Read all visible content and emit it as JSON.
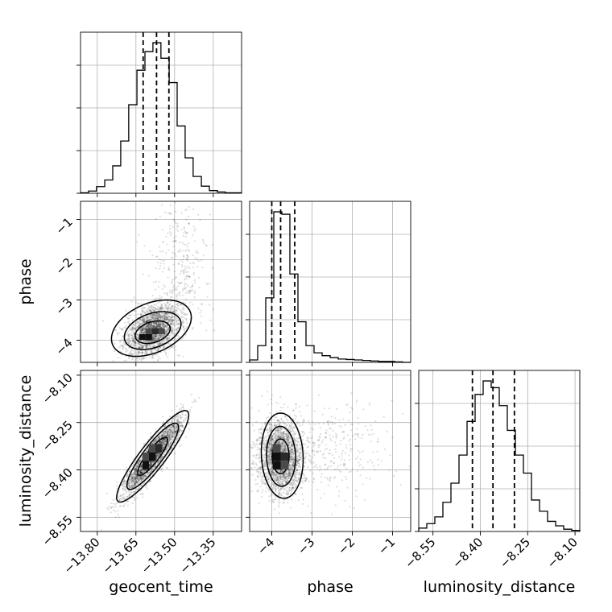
{
  "chart_data": {
    "type": "corner",
    "parameters": [
      "geocent_time",
      "phase",
      "luminosity_distance"
    ],
    "ranges": {
      "geocent_time": [
        -13.865,
        -13.24
      ],
      "phase": [
        -4.55,
        -0.55
      ],
      "luminosity_distance": [
        -8.595,
        -8.085
      ]
    },
    "ticks": {
      "geocent_time": [
        -13.8,
        -13.65,
        -13.5,
        -13.35
      ],
      "phase": [
        -4,
        -3,
        -2,
        -1
      ],
      "luminosity_distance": [
        -8.55,
        -8.4,
        -8.25,
        -8.1
      ]
    },
    "tick_labels": {
      "geocent_time": [
        "−13.80",
        "−13.65",
        "−13.50",
        "−13.35"
      ],
      "phase": [
        "−4",
        "−3",
        "−2",
        "−1"
      ],
      "luminosity_distance": [
        "−8.55",
        "−8.40",
        "−8.25",
        "−8.10"
      ]
    },
    "axis_labels": {
      "geocent_time": "geocent_time",
      "phase": "phase",
      "luminosity_distance": "luminosity_distance"
    },
    "histograms": {
      "geocent_time": {
        "edges": [
          -13.865,
          -13.834,
          -13.803,
          -13.771,
          -13.74,
          -13.709,
          -13.678,
          -13.646,
          -13.615,
          -13.584,
          -13.553,
          -13.521,
          -13.49,
          -13.459,
          -13.428,
          -13.396,
          -13.365,
          -13.334,
          -13.303,
          -13.271,
          -13.24
        ],
        "counts": [
          1,
          5,
          15,
          30,
          62,
          118,
          200,
          278,
          320,
          340,
          305,
          250,
          152,
          80,
          38,
          16,
          6,
          3,
          1,
          1
        ],
        "quantiles": [
          -13.622,
          -13.57,
          -13.522
        ]
      },
      "phase": {
        "edges": [
          -4.55,
          -4.35,
          -4.15,
          -3.95,
          -3.75,
          -3.55,
          -3.35,
          -3.15,
          -2.95,
          -2.75,
          -2.55,
          -2.35,
          -2.15,
          -1.95,
          -1.75,
          -1.55,
          -1.35,
          -1.15,
          -0.95,
          -0.75,
          -0.55
        ],
        "counts": [
          5,
          35,
          135,
          315,
          310,
          185,
          85,
          35,
          20,
          14,
          10,
          7,
          6,
          5,
          4,
          3,
          2,
          2,
          1,
          0
        ],
        "quantiles": [
          -4.0,
          -3.78,
          -3.43
        ]
      },
      "luminosity_distance": {
        "edges": [
          -8.595,
          -8.5695,
          -8.544,
          -8.5185,
          -8.493,
          -8.4675,
          -8.442,
          -8.4165,
          -8.391,
          -8.3655,
          -8.34,
          -8.3145,
          -8.289,
          -8.2635,
          -8.238,
          -8.2125,
          -8.187,
          -8.1615,
          -8.136,
          -8.1105,
          -8.085
        ],
        "counts": [
          3,
          7,
          13,
          26,
          43,
          68,
          98,
          122,
          134,
          128,
          112,
          90,
          68,
          52,
          28,
          18,
          9,
          5,
          2,
          1
        ],
        "quantiles": [
          -8.425,
          -8.36,
          -8.292
        ]
      }
    },
    "scatter_2d": [
      {
        "x": "geocent_time",
        "y": "phase",
        "mean": [
          -13.585,
          -3.75
        ],
        "sd": [
          0.05,
          0.32
        ],
        "corr": 0.35,
        "tail": {
          "mean": [
            -13.48,
            -2.2
          ],
          "sd": [
            0.06,
            0.8
          ],
          "fraction": 0.13
        },
        "peak_cells": [
          [
            -13.625,
            -3.92
          ],
          [
            -13.6,
            -3.92
          ],
          [
            -13.575,
            -3.78
          ],
          [
            -13.55,
            -3.78
          ],
          [
            -13.6,
            -3.78
          ]
        ],
        "contours": [
          {
            "level": 0.5,
            "center": [
              -13.585,
              -3.8
            ],
            "radii": [
              0.068,
              0.28
            ],
            "tilt": 0.32
          },
          {
            "level": 0.9,
            "center": [
              -13.585,
              -3.76
            ],
            "radii": [
              0.11,
              0.47
            ],
            "tilt": 0.35
          },
          {
            "level": 0.99,
            "center": [
              -13.59,
              -3.7
            ],
            "radii": [
              0.155,
              0.7
            ],
            "tilt": 0.38
          }
        ]
      },
      {
        "x": "geocent_time",
        "y": "luminosity_distance",
        "mean": [
          -13.585,
          -8.357
        ],
        "sd": [
          0.055,
          0.06
        ],
        "corr": 0.9,
        "peak_cells": [
          [
            -13.612,
            -8.385
          ],
          [
            -13.587,
            -8.358
          ],
          [
            -13.562,
            -8.332
          ],
          [
            -13.587,
            -8.332
          ],
          [
            -13.612,
            -8.358
          ]
        ],
        "contours": [
          {
            "level": 0.5,
            "center": [
              -13.585,
              -8.357
            ],
            "radii": [
              0.058,
              0.06
            ],
            "tilt": 0.86
          },
          {
            "level": 0.9,
            "center": [
              -13.585,
              -8.357
            ],
            "radii": [
              0.1,
              0.105
            ],
            "tilt": 0.88
          },
          {
            "level": 0.99,
            "center": [
              -13.585,
              -8.357
            ],
            "radii": [
              0.14,
              0.145
            ],
            "tilt": 0.9
          }
        ]
      },
      {
        "x": "phase",
        "y": "luminosity_distance",
        "mean": [
          -3.78,
          -8.357
        ],
        "sd": [
          0.28,
          0.06
        ],
        "corr": -0.05,
        "tail": {
          "mean": [
            -2.4,
            -8.33
          ],
          "sd": [
            0.7,
            0.07
          ],
          "fraction": 0.13
        },
        "peak_cells": [
          [
            -3.88,
            -8.385
          ],
          [
            -3.88,
            -8.358
          ],
          [
            -3.68,
            -8.358
          ],
          [
            -3.88,
            -8.332
          ],
          [
            -3.68,
            -8.385
          ]
        ],
        "contours": [
          {
            "level": 0.5,
            "center": [
              -3.78,
              -8.357
            ],
            "radii": [
              0.21,
              0.055
            ],
            "tilt": 0.0
          },
          {
            "level": 0.9,
            "center": [
              -3.77,
              -8.357
            ],
            "radii": [
              0.36,
              0.095
            ],
            "tilt": -0.05
          },
          {
            "level": 0.99,
            "center": [
              -3.74,
              -8.355
            ],
            "radii": [
              0.52,
              0.135
            ],
            "tilt": -0.08
          }
        ]
      }
    ],
    "grid": true
  }
}
